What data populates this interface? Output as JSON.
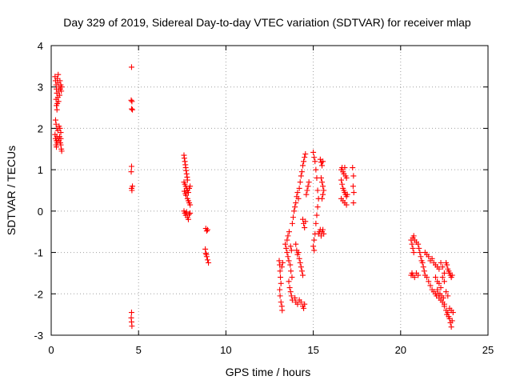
{
  "chart_data": {
    "type": "scatter",
    "title": "Day 329 of 2019, Sidereal Day-to-day VTEC variation (SDTVAR) for receiver mlap",
    "xlabel": "GPS time / hours",
    "ylabel": "SDTVAR / TECUs",
    "xlim": [
      0,
      25
    ],
    "ylim": [
      -3,
      4
    ],
    "xticks": [
      0,
      5,
      10,
      15,
      20,
      25
    ],
    "xtick_labels": [
      "0",
      "5",
      "10",
      "15",
      "20",
      "25"
    ],
    "yticks": [
      -3,
      -2,
      -1,
      0,
      1,
      2,
      3,
      4
    ],
    "ytick_labels": [
      "-3",
      "-2",
      "-1",
      "0",
      "1",
      "2",
      "3",
      "4"
    ],
    "grid": true,
    "marker": "+",
    "color": "#ff0000",
    "series": [
      {
        "name": "SDTVAR",
        "points": [
          [
            0.22,
            3.25
          ],
          [
            0.25,
            3.15
          ],
          [
            0.28,
            3.05
          ],
          [
            0.3,
            2.95
          ],
          [
            0.32,
            2.85
          ],
          [
            0.35,
            3.2
          ],
          [
            0.38,
            3.1
          ],
          [
            0.4,
            3.3
          ],
          [
            0.42,
            2.9
          ],
          [
            0.45,
            3.0
          ],
          [
            0.48,
            2.8
          ],
          [
            0.5,
            3.15
          ],
          [
            0.52,
            2.95
          ],
          [
            0.55,
            3.05
          ],
          [
            0.58,
            2.9
          ],
          [
            0.6,
            3.0
          ],
          [
            0.28,
            2.7
          ],
          [
            0.3,
            2.55
          ],
          [
            0.33,
            2.45
          ],
          [
            0.35,
            2.6
          ],
          [
            0.38,
            2.75
          ],
          [
            0.42,
            2.65
          ],
          [
            0.25,
            2.2
          ],
          [
            0.28,
            2.1
          ],
          [
            0.32,
            2.0
          ],
          [
            0.38,
            1.95
          ],
          [
            0.45,
            2.05
          ],
          [
            0.5,
            2.0
          ],
          [
            0.55,
            1.9
          ],
          [
            0.22,
            1.85
          ],
          [
            0.25,
            1.75
          ],
          [
            0.3,
            1.7
          ],
          [
            0.32,
            1.8
          ],
          [
            0.35,
            1.65
          ],
          [
            0.4,
            1.75
          ],
          [
            0.45,
            1.7
          ],
          [
            0.48,
            1.8
          ],
          [
            0.52,
            1.65
          ],
          [
            0.55,
            1.75
          ],
          [
            0.28,
            1.6
          ],
          [
            0.3,
            1.55
          ],
          [
            0.55,
            1.6
          ],
          [
            0.58,
            1.5
          ],
          [
            0.6,
            1.45
          ],
          [
            4.6,
            3.48
          ],
          [
            4.58,
            2.68
          ],
          [
            4.62,
            2.65
          ],
          [
            4.6,
            2.47
          ],
          [
            4.65,
            2.45
          ],
          [
            4.6,
            1.08
          ],
          [
            4.58,
            0.95
          ],
          [
            4.65,
            0.6
          ],
          [
            4.6,
            0.55
          ],
          [
            4.62,
            0.5
          ],
          [
            4.6,
            -2.45
          ],
          [
            4.58,
            -2.58
          ],
          [
            4.6,
            -2.68
          ],
          [
            4.62,
            -2.78
          ],
          [
            7.6,
            1.35
          ],
          [
            7.62,
            1.28
          ],
          [
            7.65,
            1.2
          ],
          [
            7.68,
            1.12
          ],
          [
            7.7,
            1.05
          ],
          [
            7.72,
            0.98
          ],
          [
            7.75,
            0.9
          ],
          [
            7.78,
            0.82
          ],
          [
            7.8,
            0.75
          ],
          [
            7.6,
            0.7
          ],
          [
            7.65,
            0.65
          ],
          [
            7.7,
            0.6
          ],
          [
            7.75,
            0.55
          ],
          [
            7.8,
            0.5
          ],
          [
            7.85,
            0.45
          ],
          [
            7.9,
            0.55
          ],
          [
            7.95,
            0.6
          ],
          [
            7.72,
            0.38
          ],
          [
            7.8,
            0.3
          ],
          [
            7.85,
            0.25
          ],
          [
            7.9,
            0.2
          ],
          [
            7.95,
            0.15
          ],
          [
            7.62,
            0.48
          ],
          [
            7.68,
            0.42
          ],
          [
            7.6,
            0.0
          ],
          [
            7.65,
            -0.05
          ],
          [
            7.7,
            -0.1
          ],
          [
            7.75,
            -0.02
          ],
          [
            7.8,
            -0.15
          ],
          [
            7.85,
            -0.2
          ],
          [
            7.9,
            -0.08
          ],
          [
            7.95,
            -0.05
          ],
          [
            8.85,
            -0.42
          ],
          [
            8.9,
            -0.48
          ],
          [
            8.95,
            -0.45
          ],
          [
            8.82,
            -0.92
          ],
          [
            8.85,
            -1.02
          ],
          [
            8.9,
            -1.1
          ],
          [
            8.95,
            -1.18
          ],
          [
            9.0,
            -1.25
          ],
          [
            8.88,
            -1.05
          ],
          [
            13.05,
            -1.2
          ],
          [
            13.08,
            -1.3
          ],
          [
            13.1,
            -1.45
          ],
          [
            13.12,
            -1.6
          ],
          [
            13.15,
            -1.75
          ],
          [
            13.08,
            -1.9
          ],
          [
            13.1,
            -2.05
          ],
          [
            13.15,
            -2.2
          ],
          [
            13.2,
            -2.3
          ],
          [
            13.22,
            -2.4
          ],
          [
            13.2,
            -1.35
          ],
          [
            13.25,
            -1.25
          ],
          [
            13.4,
            -0.8
          ],
          [
            13.45,
            -0.9
          ],
          [
            13.5,
            -1.0
          ],
          [
            13.55,
            -1.1
          ],
          [
            13.6,
            -1.2
          ],
          [
            13.5,
            -0.7
          ],
          [
            13.55,
            -0.6
          ],
          [
            13.62,
            -0.5
          ],
          [
            13.7,
            -0.85
          ],
          [
            13.75,
            -0.95
          ],
          [
            13.68,
            -1.3
          ],
          [
            13.72,
            -1.45
          ],
          [
            13.78,
            -1.6
          ],
          [
            13.6,
            -1.7
          ],
          [
            13.65,
            -1.85
          ],
          [
            13.7,
            -1.95
          ],
          [
            13.75,
            -2.05
          ],
          [
            13.8,
            -2.15
          ],
          [
            13.8,
            -0.3
          ],
          [
            13.85,
            -0.15
          ],
          [
            13.9,
            0.0
          ],
          [
            13.95,
            0.1
          ],
          [
            14.0,
            0.2
          ],
          [
            14.05,
            0.35
          ],
          [
            14.1,
            0.45
          ],
          [
            14.15,
            0.3
          ],
          [
            14.2,
            0.55
          ],
          [
            14.25,
            0.7
          ],
          [
            14.3,
            0.85
          ],
          [
            14.35,
            0.95
          ],
          [
            14.4,
            1.1
          ],
          [
            14.45,
            1.2
          ],
          [
            14.5,
            1.3
          ],
          [
            14.55,
            1.38
          ],
          [
            14.0,
            -0.8
          ],
          [
            14.05,
            -0.95
          ],
          [
            14.1,
            -1.05
          ],
          [
            14.15,
            -1.0
          ],
          [
            14.2,
            -1.15
          ],
          [
            14.25,
            -1.25
          ],
          [
            14.3,
            -1.35
          ],
          [
            14.35,
            -1.45
          ],
          [
            14.4,
            -1.55
          ],
          [
            13.95,
            -2.1
          ],
          [
            14.0,
            -2.2
          ],
          [
            14.1,
            -2.25
          ],
          [
            14.2,
            -2.15
          ],
          [
            14.3,
            -2.2
          ],
          [
            14.4,
            -2.3
          ],
          [
            14.45,
            -2.35
          ],
          [
            14.5,
            -2.25
          ],
          [
            14.4,
            -0.2
          ],
          [
            14.45,
            -0.3
          ],
          [
            14.5,
            -0.4
          ],
          [
            14.55,
            -0.25
          ],
          [
            14.6,
            0.4
          ],
          [
            14.65,
            0.5
          ],
          [
            14.7,
            0.6
          ],
          [
            14.75,
            0.7
          ],
          [
            15.0,
            1.42
          ],
          [
            15.05,
            1.3
          ],
          [
            15.1,
            1.2
          ],
          [
            15.15,
            1.0
          ],
          [
            15.2,
            0.8
          ],
          [
            15.25,
            0.5
          ],
          [
            15.3,
            0.3
          ],
          [
            15.25,
            0.1
          ],
          [
            15.2,
            -0.1
          ],
          [
            15.15,
            -0.3
          ],
          [
            15.1,
            -0.55
          ],
          [
            15.05,
            -0.7
          ],
          [
            15.0,
            -0.85
          ],
          [
            15.05,
            -0.95
          ],
          [
            15.4,
            1.25
          ],
          [
            15.45,
            1.18
          ],
          [
            15.5,
            1.1
          ],
          [
            15.55,
            1.2
          ],
          [
            15.45,
            0.8
          ],
          [
            15.5,
            0.7
          ],
          [
            15.55,
            0.6
          ],
          [
            15.6,
            0.5
          ],
          [
            15.55,
            0.4
          ],
          [
            15.5,
            0.3
          ],
          [
            15.3,
            -0.55
          ],
          [
            15.35,
            -0.5
          ],
          [
            15.4,
            -0.45
          ],
          [
            15.45,
            -0.6
          ],
          [
            15.5,
            -0.5
          ],
          [
            15.55,
            -0.45
          ],
          [
            15.6,
            -0.55
          ],
          [
            16.6,
            1.0
          ],
          [
            16.65,
            1.05
          ],
          [
            16.7,
            0.95
          ],
          [
            16.75,
            0.9
          ],
          [
            16.8,
            1.05
          ],
          [
            16.85,
            0.85
          ],
          [
            16.9,
            0.8
          ],
          [
            16.6,
            0.75
          ],
          [
            16.65,
            0.65
          ],
          [
            16.7,
            0.55
          ],
          [
            16.75,
            0.5
          ],
          [
            16.8,
            0.45
          ],
          [
            16.85,
            0.4
          ],
          [
            16.9,
            0.35
          ],
          [
            16.95,
            0.4
          ],
          [
            16.6,
            0.3
          ],
          [
            16.7,
            0.25
          ],
          [
            16.8,
            0.2
          ],
          [
            16.9,
            0.15
          ],
          [
            17.25,
            1.05
          ],
          [
            17.3,
            0.85
          ],
          [
            17.28,
            0.6
          ],
          [
            17.32,
            0.45
          ],
          [
            17.3,
            0.2
          ],
          [
            20.6,
            -0.7
          ],
          [
            20.65,
            -0.8
          ],
          [
            20.7,
            -0.9
          ],
          [
            20.75,
            -1.0
          ],
          [
            20.7,
            -0.65
          ],
          [
            20.75,
            -0.6
          ],
          [
            20.8,
            -0.7
          ],
          [
            20.9,
            -0.75
          ],
          [
            21.0,
            -0.8
          ],
          [
            21.05,
            -0.9
          ],
          [
            21.1,
            -1.0
          ],
          [
            21.15,
            -1.1
          ],
          [
            21.2,
            -1.2
          ],
          [
            21.25,
            -1.25
          ],
          [
            21.3,
            -1.35
          ],
          [
            21.35,
            -1.45
          ],
          [
            21.4,
            -1.55
          ],
          [
            20.6,
            -1.55
          ],
          [
            20.65,
            -1.5
          ],
          [
            20.7,
            -1.55
          ],
          [
            20.8,
            -1.6
          ],
          [
            20.9,
            -1.5
          ],
          [
            21.0,
            -1.55
          ],
          [
            21.4,
            -1.0
          ],
          [
            21.5,
            -1.05
          ],
          [
            21.6,
            -1.1
          ],
          [
            21.7,
            -1.2
          ],
          [
            21.8,
            -1.15
          ],
          [
            21.9,
            -1.25
          ],
          [
            22.0,
            -1.3
          ],
          [
            22.1,
            -1.35
          ],
          [
            22.2,
            -1.4
          ],
          [
            22.3,
            -1.25
          ],
          [
            22.4,
            -1.35
          ],
          [
            22.5,
            -1.5
          ],
          [
            21.5,
            -1.6
          ],
          [
            21.6,
            -1.7
          ],
          [
            21.7,
            -1.8
          ],
          [
            21.8,
            -1.9
          ],
          [
            21.9,
            -1.95
          ],
          [
            22.0,
            -2.0
          ],
          [
            22.05,
            -2.05
          ],
          [
            22.1,
            -1.9
          ],
          [
            22.15,
            -2.0
          ],
          [
            22.2,
            -2.1
          ],
          [
            22.25,
            -2.0
          ],
          [
            22.3,
            -2.15
          ],
          [
            22.35,
            -2.05
          ],
          [
            22.4,
            -2.2
          ],
          [
            22.45,
            -2.1
          ],
          [
            22.5,
            -2.25
          ],
          [
            22.0,
            -1.6
          ],
          [
            22.1,
            -1.7
          ],
          [
            22.2,
            -1.75
          ],
          [
            22.3,
            -1.85
          ],
          [
            22.4,
            -1.6
          ],
          [
            22.5,
            -1.7
          ],
          [
            22.6,
            -1.95
          ],
          [
            22.7,
            -2.05
          ],
          [
            22.5,
            -2.3
          ],
          [
            22.6,
            -2.4
          ],
          [
            22.65,
            -2.5
          ],
          [
            22.7,
            -2.45
          ],
          [
            22.75,
            -2.55
          ],
          [
            22.8,
            -2.6
          ],
          [
            22.85,
            -2.7
          ],
          [
            22.9,
            -2.8
          ],
          [
            22.95,
            -2.65
          ],
          [
            23.0,
            -2.45
          ],
          [
            22.8,
            -2.35
          ],
          [
            22.9,
            -2.4
          ],
          [
            22.6,
            -1.25
          ],
          [
            22.65,
            -1.3
          ],
          [
            22.7,
            -1.4
          ],
          [
            22.75,
            -1.45
          ],
          [
            22.8,
            -1.5
          ],
          [
            22.85,
            -1.55
          ],
          [
            22.9,
            -1.6
          ],
          [
            22.95,
            -1.55
          ]
        ]
      }
    ]
  }
}
